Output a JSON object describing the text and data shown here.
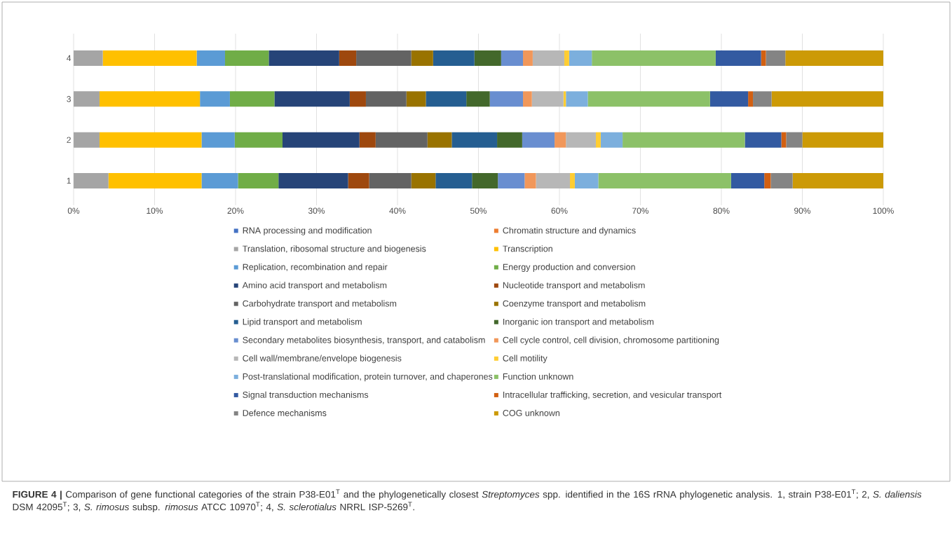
{
  "chart_data": {
    "type": "bar",
    "orientation": "horizontal",
    "stacked": true,
    "categories": [
      "4",
      "3",
      "2",
      "1"
    ],
    "xlim": [
      0,
      100
    ],
    "xticks": [
      {
        "value": 0,
        "label": "0%"
      },
      {
        "value": 10,
        "label": "10%"
      },
      {
        "value": 20,
        "label": "20%"
      },
      {
        "value": 30,
        "label": "30%"
      },
      {
        "value": 40,
        "label": "40%"
      },
      {
        "value": 50,
        "label": "50%"
      },
      {
        "value": 60,
        "label": "60%"
      },
      {
        "value": 70,
        "label": "70%"
      },
      {
        "value": 80,
        "label": "80%"
      },
      {
        "value": 90,
        "label": "90%"
      },
      {
        "value": 100,
        "label": "100%"
      }
    ],
    "grid": "x",
    "legend": "bottom",
    "series": [
      {
        "name": "RNA processing and modification",
        "color": "#4472c4",
        "values": [
          0,
          0,
          0,
          0
        ]
      },
      {
        "name": "Chromatin structure and dynamics",
        "color": "#ed7d31",
        "values": [
          0,
          0,
          0,
          0
        ]
      },
      {
        "name": "Translation, ribosomal structure and biogenesis",
        "color": "#a5a5a5",
        "values": [
          3.6,
          3.2,
          3.2,
          4.3
        ]
      },
      {
        "name": "Transcription",
        "color": "#ffc000",
        "values": [
          11.6,
          12.4,
          12.6,
          11.5
        ]
      },
      {
        "name": "Replication, recombination and repair",
        "color": "#5b9bd5",
        "values": [
          3.5,
          3.7,
          4.1,
          4.5
        ]
      },
      {
        "name": "Energy production and conversion",
        "color": "#70ad47",
        "values": [
          5.4,
          5.5,
          5.9,
          5.0
        ]
      },
      {
        "name": "Amino acid transport and metabolism",
        "color": "#264478",
        "values": [
          8.7,
          9.3,
          9.5,
          8.6
        ]
      },
      {
        "name": "Nucleotide transport and metabolism",
        "color": "#9e480e",
        "values": [
          2.1,
          2.0,
          2.0,
          2.6
        ]
      },
      {
        "name": "Carbohydrate transport and metabolism",
        "color": "#636363",
        "values": [
          6.8,
          5.0,
          6.4,
          5.2
        ]
      },
      {
        "name": "Coenzyme transport and metabolism",
        "color": "#997300",
        "values": [
          2.7,
          2.4,
          3.0,
          3.0
        ]
      },
      {
        "name": "Lipid transport and metabolism",
        "color": "#255e91",
        "values": [
          5.1,
          5.0,
          5.6,
          4.5
        ]
      },
      {
        "name": "Inorganic ion transport and metabolism",
        "color": "#43682b",
        "values": [
          3.3,
          2.9,
          3.1,
          3.2
        ]
      },
      {
        "name": "Secondary metabolites biosynthesis, transport, and catabolism",
        "color": "#698ed0",
        "values": [
          2.7,
          4.1,
          4.0,
          3.3
        ]
      },
      {
        "name": "Cell cycle control, cell division, chromosome partitioning",
        "color": "#f1975a",
        "values": [
          1.2,
          1.1,
          1.4,
          1.4
        ]
      },
      {
        "name": "Cell wall/membrane/envelope biogenesis",
        "color": "#b7b7b7",
        "values": [
          3.9,
          3.9,
          3.7,
          4.2
        ]
      },
      {
        "name": "Cell motility",
        "color": "#ffcd33",
        "values": [
          0.6,
          0.3,
          0.6,
          0.6
        ]
      },
      {
        "name": "Post-translational modification, protein turnover, and chaperones",
        "color": "#7cafdd",
        "values": [
          2.8,
          2.7,
          2.7,
          2.9
        ]
      },
      {
        "name": "Function unknown",
        "color": "#8cc168",
        "values": [
          15.3,
          15.1,
          15.1,
          16.4
        ]
      },
      {
        "name": "Signal transduction mechanisms",
        "color": "#335aa1",
        "values": [
          5.6,
          4.7,
          4.5,
          4.1
        ]
      },
      {
        "name": "Intracellular trafficking, secretion, and vesicular transport",
        "color": "#d26012",
        "values": [
          0.6,
          0.6,
          0.6,
          0.8
        ]
      },
      {
        "name": "Defence mechanisms",
        "color": "#848484",
        "values": [
          2.4,
          2.3,
          2.0,
          2.7
        ]
      },
      {
        "name": "COG unknown",
        "color": "#cc9a06",
        "values": [
          12.1,
          13.8,
          10.0,
          11.2
        ]
      }
    ],
    "annotations": [
      "**FIGURE 4 |** Comparison of gene functional categories of the strain P38-E01$^{T}$ and the phylogenetically closest *Streptomyces* spp. identified in the 16S rRNA phylogenetic analysis. 1, strain P38-E01$^{T}$; 2, *S. daliensis* DSM 42095$^{T}$; 3, *S. rimosus* subsp. *rimosus* ATCC 10970$^{T}$; 4, *S. sclerotialus* NRRL ISP-5269$^{T}$."
    ]
  }
}
